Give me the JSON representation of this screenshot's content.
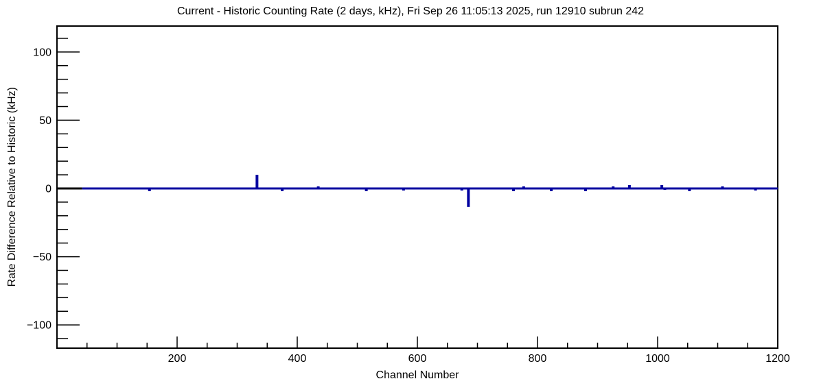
{
  "session": {
    "run": "12910",
    "subrun": "242",
    "datetime": "Fri Sep 26 11:05:13 2025"
  },
  "chart_data": {
    "type": "line",
    "title": "Current - Historic Counting Rate (2 days, kHz), Fri Sep 26 11:05:13 2025, run 12910 subrun 242",
    "xlabel": "Channel Number",
    "ylabel": "Rate Difference Relative to Historic (kHz)",
    "xlim": [
      0,
      1200
    ],
    "ylim": [
      -117,
      119
    ],
    "x_major_ticks": [
      200,
      400,
      600,
      800,
      1000,
      1200
    ],
    "x_minor_step": 50,
    "y_major_ticks": [
      -100,
      -50,
      0,
      50,
      100
    ],
    "y_minor_step": 10,
    "grid": false,
    "legend": null,
    "baseline_value": 0,
    "line_color": "#0000a0",
    "frame_color": "#000000",
    "background_color": "#ffffff",
    "baseline_black_segment": {
      "from_channel": 0,
      "to_channel": 42,
      "color": "#000000"
    },
    "series": [
      {
        "name": "rate-difference",
        "description": "flat at 0 kHz for all channels except listed spikes",
        "spikes": [
          {
            "channel": 154,
            "value": -2
          },
          {
            "channel": 333,
            "value": 10
          },
          {
            "channel": 375,
            "value": -2
          },
          {
            "channel": 435,
            "value": 1.5
          },
          {
            "channel": 515,
            "value": -2
          },
          {
            "channel": 577,
            "value": -1.5
          },
          {
            "channel": 674,
            "value": -1.5
          },
          {
            "channel": 685,
            "value": -13.5
          },
          {
            "channel": 760,
            "value": -2
          },
          {
            "channel": 777,
            "value": 1.5
          },
          {
            "channel": 823,
            "value": -2
          },
          {
            "channel": 880,
            "value": -2
          },
          {
            "channel": 926,
            "value": 1.5
          },
          {
            "channel": 953,
            "value": 2.5
          },
          {
            "channel": 1007,
            "value": 2.5
          },
          {
            "channel": 1012,
            "value": -1
          },
          {
            "channel": 1053,
            "value": -2
          },
          {
            "channel": 1108,
            "value": 1.5
          },
          {
            "channel": 1163,
            "value": -1.5
          }
        ]
      }
    ]
  }
}
